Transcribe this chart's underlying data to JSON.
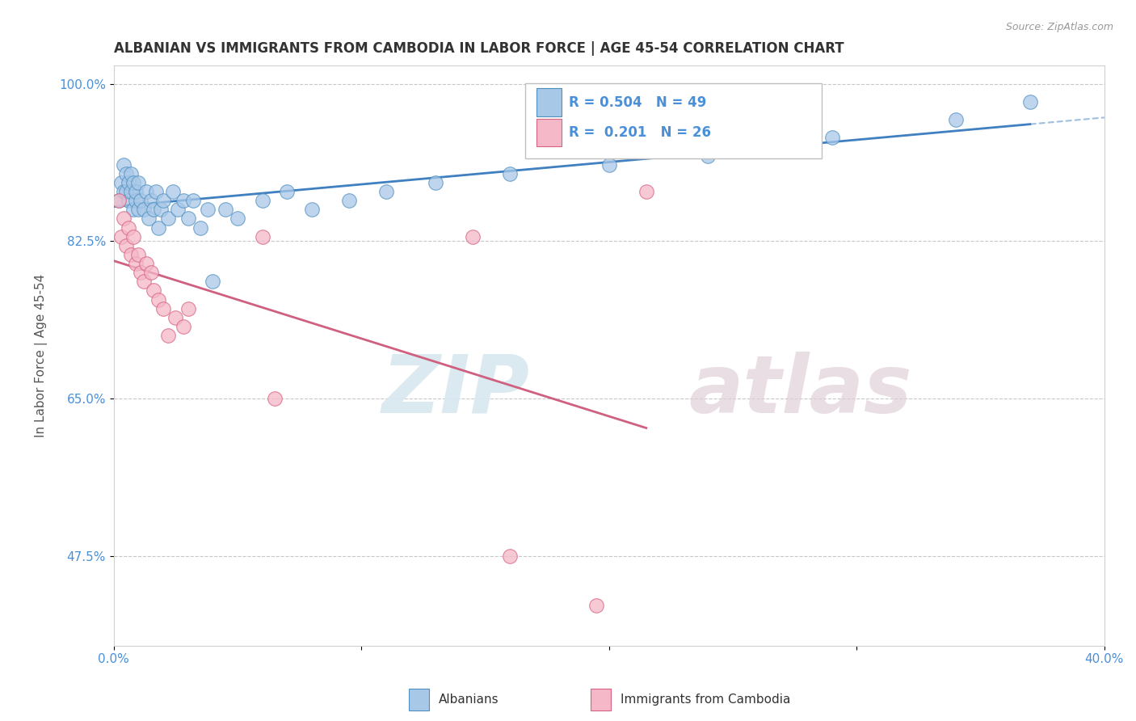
{
  "title": "ALBANIAN VS IMMIGRANTS FROM CAMBODIA IN LABOR FORCE | AGE 45-54 CORRELATION CHART",
  "source": "Source: ZipAtlas.com",
  "ylabel": "In Labor Force | Age 45-54",
  "xlim": [
    0.0,
    0.4
  ],
  "ylim": [
    0.375,
    1.02
  ],
  "yticks": [
    0.475,
    0.65,
    0.825,
    1.0
  ],
  "ytick_labels": [
    "47.5%",
    "65.0%",
    "82.5%",
    "100.0%"
  ],
  "xticks": [
    0.0,
    0.1,
    0.2,
    0.3,
    0.4
  ],
  "xtick_labels": [
    "0.0%",
    "",
    "",
    "",
    "40.0%"
  ],
  "albanians_x": [
    0.002,
    0.003,
    0.004,
    0.004,
    0.005,
    0.005,
    0.006,
    0.006,
    0.007,
    0.007,
    0.008,
    0.008,
    0.009,
    0.009,
    0.01,
    0.01,
    0.011,
    0.012,
    0.013,
    0.014,
    0.015,
    0.016,
    0.017,
    0.018,
    0.019,
    0.02,
    0.022,
    0.024,
    0.026,
    0.028,
    0.03,
    0.032,
    0.035,
    0.038,
    0.04,
    0.045,
    0.05,
    0.06,
    0.07,
    0.08,
    0.095,
    0.11,
    0.13,
    0.16,
    0.2,
    0.24,
    0.29,
    0.34,
    0.37
  ],
  "albanians_y": [
    0.87,
    0.89,
    0.88,
    0.91,
    0.9,
    0.88,
    0.87,
    0.89,
    0.88,
    0.9,
    0.86,
    0.89,
    0.87,
    0.88,
    0.86,
    0.89,
    0.87,
    0.86,
    0.88,
    0.85,
    0.87,
    0.86,
    0.88,
    0.84,
    0.86,
    0.87,
    0.85,
    0.88,
    0.86,
    0.87,
    0.85,
    0.87,
    0.84,
    0.86,
    0.78,
    0.86,
    0.85,
    0.87,
    0.88,
    0.86,
    0.87,
    0.88,
    0.89,
    0.9,
    0.91,
    0.92,
    0.94,
    0.96,
    0.98
  ],
  "cambodia_x": [
    0.002,
    0.003,
    0.004,
    0.005,
    0.006,
    0.007,
    0.008,
    0.009,
    0.01,
    0.011,
    0.012,
    0.013,
    0.015,
    0.016,
    0.018,
    0.02,
    0.022,
    0.025,
    0.028,
    0.03,
    0.06,
    0.065,
    0.145,
    0.16,
    0.195,
    0.215
  ],
  "cambodia_y": [
    0.87,
    0.83,
    0.85,
    0.82,
    0.84,
    0.81,
    0.83,
    0.8,
    0.81,
    0.79,
    0.78,
    0.8,
    0.79,
    0.77,
    0.76,
    0.75,
    0.72,
    0.74,
    0.73,
    0.75,
    0.83,
    0.65,
    0.83,
    0.475,
    0.42,
    0.88
  ],
  "albanian_color": "#a8c8e8",
  "cambodia_color": "#f4b8c8",
  "albanian_edge_color": "#5090c0",
  "cambodia_edge_color": "#d86080",
  "albanian_line_color": "#4080c0",
  "cambodia_line_color": "#d06080",
  "R_albanian": 0.504,
  "N_albanian": 49,
  "R_cambodia": 0.201,
  "N_cambodia": 26,
  "legend_label_albanian": "Albanians",
  "legend_label_cambodia": "Immigrants from Cambodia",
  "watermark_zip": "ZIP",
  "watermark_atlas": "atlas",
  "title_fontsize": 12,
  "axis_label_fontsize": 11,
  "tick_fontsize": 11
}
